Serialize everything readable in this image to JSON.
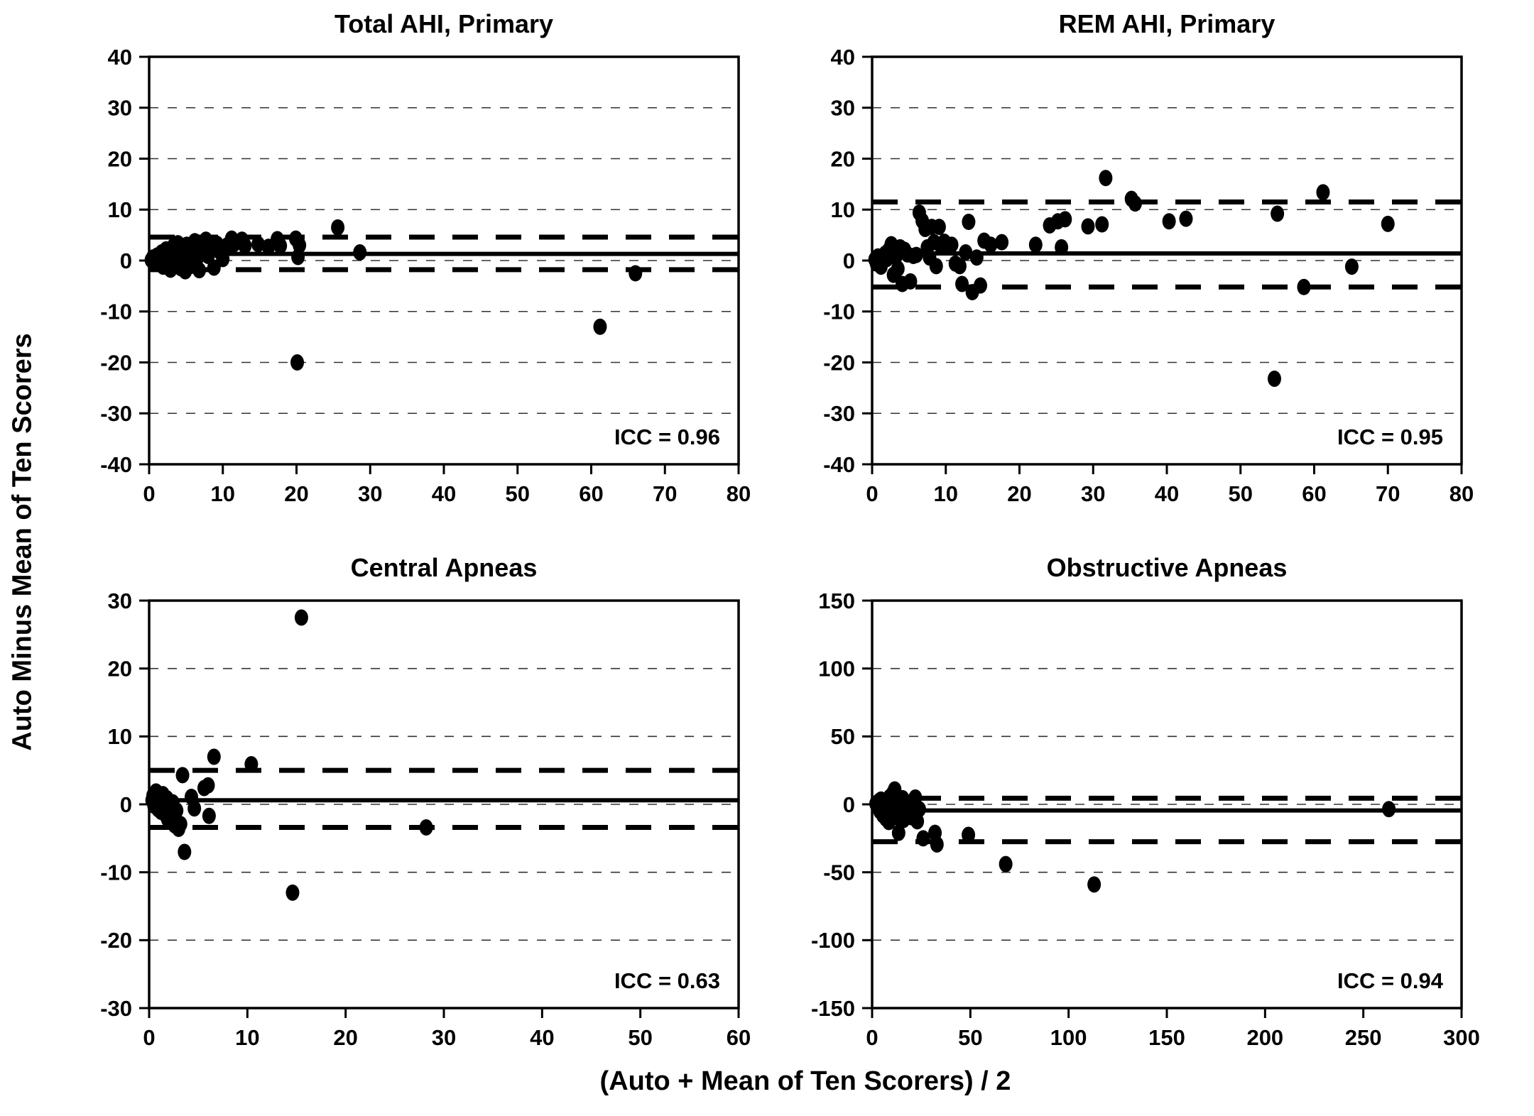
{
  "figure": {
    "ylabel": "Auto Minus Mean of Ten Scorers",
    "xlabel": "(Auto + Mean of Ten Scorers) / 2",
    "background": "#ffffff",
    "foreground": "#000000"
  },
  "chart_data": [
    {
      "id": "total-ahi-primary",
      "type": "scatter",
      "title": "Total AHI, Primary",
      "icc_label": "ICC = 0.96",
      "xlim": [
        0,
        80
      ],
      "ylim": [
        -40,
        40
      ],
      "xticks": [
        0,
        10,
        20,
        30,
        40,
        50,
        60,
        70,
        80
      ],
      "yticks": [
        -40,
        -30,
        -20,
        -10,
        0,
        10,
        20,
        30,
        40
      ],
      "grid": "dashed-horizontal",
      "mean_line": 1.3,
      "loa_upper": 4.6,
      "loa_lower": -1.8,
      "points": [
        [
          0.3,
          0.1
        ],
        [
          0.5,
          0.6
        ],
        [
          0.7,
          -0.4
        ],
        [
          0.9,
          0.3
        ],
        [
          1.1,
          1.0
        ],
        [
          1.3,
          -0.7
        ],
        [
          1.5,
          0.4
        ],
        [
          1.7,
          1.6
        ],
        [
          1.9,
          -1.2
        ],
        [
          2.1,
          0.8
        ],
        [
          2.3,
          2.2
        ],
        [
          2.5,
          -0.3
        ],
        [
          2.7,
          1.2
        ],
        [
          2.9,
          -1.8
        ],
        [
          3.1,
          0.5
        ],
        [
          3.3,
          2.8
        ],
        [
          3.5,
          -0.9
        ],
        [
          3.7,
          1.9
        ],
        [
          3.9,
          3.4
        ],
        [
          4.1,
          0.2
        ],
        [
          4.3,
          -1.5
        ],
        [
          4.5,
          2.4
        ],
        [
          4.7,
          1.1
        ],
        [
          4.9,
          -2.1
        ],
        [
          5.1,
          3.1
        ],
        [
          5.3,
          0.7
        ],
        [
          5.6,
          -1.1
        ],
        [
          5.9,
          2.0
        ],
        [
          6.2,
          3.8
        ],
        [
          6.5,
          0.4
        ],
        [
          6.8,
          -1.9
        ],
        [
          7.1,
          2.9
        ],
        [
          7.4,
          1.4
        ],
        [
          7.7,
          4.1
        ],
        [
          8.0,
          0.9
        ],
        [
          8.4,
          2.2
        ],
        [
          8.8,
          -1.4
        ],
        [
          9.2,
          3.3
        ],
        [
          9.6,
          1.7
        ],
        [
          10.0,
          0.3
        ],
        [
          10.6,
          3.0
        ],
        [
          11.2,
          4.3
        ],
        [
          11.5,
          3.2
        ],
        [
          12.6,
          4.1
        ],
        [
          13.0,
          2.9
        ],
        [
          14.8,
          3.2
        ],
        [
          16.2,
          2.7
        ],
        [
          17.4,
          4.2
        ],
        [
          17.8,
          2.9
        ],
        [
          19.9,
          4.3
        ],
        [
          20.2,
          0.7
        ],
        [
          20.4,
          3.0
        ],
        [
          20.1,
          -20.0
        ],
        [
          25.6,
          6.5
        ],
        [
          28.6,
          1.6
        ],
        [
          61.2,
          -13.0
        ],
        [
          66.0,
          -2.5
        ]
      ]
    },
    {
      "id": "rem-ahi-primary",
      "type": "scatter",
      "title": "REM AHI, Primary",
      "icc_label": "ICC = 0.95",
      "xlim": [
        0,
        80
      ],
      "ylim": [
        -40,
        40
      ],
      "xticks": [
        0,
        10,
        20,
        30,
        40,
        50,
        60,
        70,
        80
      ],
      "yticks": [
        -40,
        -30,
        -20,
        -10,
        0,
        10,
        20,
        30,
        40
      ],
      "grid": "dashed-horizontal",
      "mean_line": 1.4,
      "loa_upper": 11.5,
      "loa_lower": -5.2,
      "points": [
        [
          0.4,
          0.2
        ],
        [
          0.6,
          -0.6
        ],
        [
          0.8,
          0.8
        ],
        [
          1.0,
          0.1
        ],
        [
          1.2,
          -1.2
        ],
        [
          1.5,
          0.6
        ],
        [
          1.8,
          1.4
        ],
        [
          2.0,
          0.3
        ],
        [
          2.3,
          2.1
        ],
        [
          2.6,
          3.2
        ],
        [
          2.9,
          -2.8
        ],
        [
          3.2,
          0.7
        ],
        [
          3.5,
          -1.6
        ],
        [
          3.8,
          2.6
        ],
        [
          4.1,
          -4.6
        ],
        [
          4.4,
          2.1
        ],
        [
          4.8,
          1.2
        ],
        [
          5.2,
          -4.1
        ],
        [
          5.6,
          0.9
        ],
        [
          6.0,
          1.1
        ],
        [
          6.4,
          9.4
        ],
        [
          6.8,
          7.8
        ],
        [
          7.2,
          6.2
        ],
        [
          7.5,
          2.6
        ],
        [
          7.8,
          0.6
        ],
        [
          8.1,
          6.6
        ],
        [
          8.4,
          3.6
        ],
        [
          8.7,
          -1.1
        ],
        [
          9.1,
          6.6
        ],
        [
          9.4,
          2.7
        ],
        [
          9.8,
          3.7
        ],
        [
          10.3,
          2.6
        ],
        [
          10.8,
          3.1
        ],
        [
          11.3,
          -0.6
        ],
        [
          11.9,
          -1.1
        ],
        [
          12.2,
          -4.6
        ],
        [
          12.7,
          1.6
        ],
        [
          13.1,
          7.6
        ],
        [
          13.6,
          -6.2
        ],
        [
          14.2,
          0.6
        ],
        [
          14.7,
          -4.9
        ],
        [
          15.2,
          3.9
        ],
        [
          16.1,
          3.1
        ],
        [
          17.6,
          3.6
        ],
        [
          22.2,
          3.1
        ],
        [
          24.1,
          6.9
        ],
        [
          25.2,
          7.7
        ],
        [
          25.7,
          2.6
        ],
        [
          26.2,
          8.1
        ],
        [
          29.3,
          6.7
        ],
        [
          31.2,
          7.1
        ],
        [
          31.7,
          16.2
        ],
        [
          35.2,
          12.1
        ],
        [
          35.7,
          11.2
        ],
        [
          40.3,
          7.7
        ],
        [
          42.6,
          8.2
        ],
        [
          55.0,
          9.2
        ],
        [
          54.6,
          -23.2
        ],
        [
          58.6,
          -5.2
        ],
        [
          61.2,
          13.4
        ],
        [
          65.1,
          -1.2
        ],
        [
          70.0,
          7.2
        ]
      ]
    },
    {
      "id": "central-apneas",
      "type": "scatter",
      "title": "Central Apneas",
      "icc_label": "ICC = 0.63",
      "xlim": [
        0,
        60
      ],
      "ylim": [
        -30,
        30
      ],
      "xticks": [
        0,
        10,
        20,
        30,
        40,
        50,
        60
      ],
      "yticks": [
        -30,
        -20,
        -10,
        0,
        10,
        20,
        30
      ],
      "grid": "dashed-horizontal",
      "mean_line": 0.6,
      "loa_upper": 5.0,
      "loa_lower": -3.4,
      "points": [
        [
          0.3,
          0.6
        ],
        [
          0.4,
          1.3
        ],
        [
          0.5,
          -0.2
        ],
        [
          0.6,
          0.9
        ],
        [
          0.7,
          1.9
        ],
        [
          0.8,
          0.2
        ],
        [
          0.9,
          -0.7
        ],
        [
          1.0,
          1.1
        ],
        [
          1.1,
          0.4
        ],
        [
          1.2,
          -1.1
        ],
        [
          1.3,
          0.7
        ],
        [
          1.4,
          1.5
        ],
        [
          1.5,
          -0.4
        ],
        [
          1.6,
          0.1
        ],
        [
          1.7,
          -1.6
        ],
        [
          1.8,
          0.9
        ],
        [
          1.9,
          -2.2
        ],
        [
          2.0,
          0.5
        ],
        [
          2.1,
          -1.3
        ],
        [
          2.2,
          -0.6
        ],
        [
          2.3,
          -2.6
        ],
        [
          2.4,
          0.3
        ],
        [
          2.5,
          -1.9
        ],
        [
          2.6,
          -3.1
        ],
        [
          2.8,
          -0.9
        ],
        [
          3.0,
          -3.6
        ],
        [
          3.2,
          -2.9
        ],
        [
          3.4,
          4.3
        ],
        [
          3.6,
          -7.0
        ],
        [
          4.3,
          1.1
        ],
        [
          4.6,
          -0.6
        ],
        [
          5.6,
          2.4
        ],
        [
          6.0,
          2.8
        ],
        [
          6.1,
          -1.7
        ],
        [
          6.6,
          7.0
        ],
        [
          10.4,
          5.9
        ],
        [
          14.6,
          -13.0
        ],
        [
          15.5,
          27.5
        ],
        [
          28.2,
          -3.4
        ]
      ]
    },
    {
      "id": "obstructive-apneas",
      "type": "scatter",
      "title": "Obstructive Apneas",
      "icc_label": "ICC = 0.94",
      "xlim": [
        0,
        300
      ],
      "ylim": [
        -150,
        150
      ],
      "xticks": [
        0,
        50,
        100,
        150,
        200,
        250,
        300
      ],
      "yticks": [
        -150,
        -100,
        -50,
        0,
        50,
        100,
        150
      ],
      "grid": "dashed-horizontal",
      "mean_line": -4.5,
      "loa_upper": 4.5,
      "loa_lower": -27.5,
      "points": [
        [
          2,
          0.5
        ],
        [
          3,
          -2
        ],
        [
          3.5,
          2.5
        ],
        [
          4,
          -5
        ],
        [
          4.5,
          3.5
        ],
        [
          5,
          -1
        ],
        [
          5.5,
          -8
        ],
        [
          6,
          1.5
        ],
        [
          6.5,
          -4
        ],
        [
          7,
          -10.5
        ],
        [
          7.5,
          3
        ],
        [
          8,
          -2.5
        ],
        [
          8.5,
          -13
        ],
        [
          9,
          5.5
        ],
        [
          9.5,
          -6.5
        ],
        [
          10,
          -3.5
        ],
        [
          10.5,
          8
        ],
        [
          11.5,
          11
        ],
        [
          12,
          -9.5
        ],
        [
          12.5,
          2.5
        ],
        [
          13,
          -5.5
        ],
        [
          13.5,
          -21
        ],
        [
          14,
          -1.5
        ],
        [
          14.5,
          -7.5
        ],
        [
          15,
          -3
        ],
        [
          15.5,
          4.5
        ],
        [
          16,
          -11.5
        ],
        [
          17,
          -2
        ],
        [
          18,
          -6
        ],
        [
          19,
          -4.5
        ],
        [
          20,
          -9.5
        ],
        [
          21,
          3
        ],
        [
          22,
          5
        ],
        [
          23,
          -12.5
        ],
        [
          24,
          -3.5
        ],
        [
          26,
          -25
        ],
        [
          32,
          -21
        ],
        [
          33,
          -29.5
        ],
        [
          49,
          -22.5
        ],
        [
          68,
          -44
        ],
        [
          113,
          -59
        ],
        [
          263,
          -3.5
        ]
      ]
    }
  ],
  "style_values": {
    "point_color": "#000000",
    "line_color": "#000000",
    "grid_color": "#333333"
  }
}
